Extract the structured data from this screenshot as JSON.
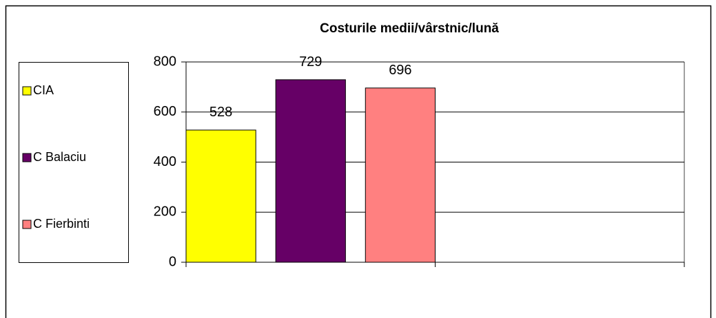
{
  "chart_data": {
    "type": "bar",
    "title": "Costurile medii/vârstnic/lună",
    "categories": [
      null,
      null
    ],
    "series": [
      {
        "name": "CIA",
        "color": "#ffff00",
        "values": [
          528,
          null
        ]
      },
      {
        "name": "C Balaciu",
        "color": "#660066",
        "values": [
          729,
          null
        ]
      },
      {
        "name": "C Fierbinti",
        "color": "#ff8080",
        "values": [
          696,
          null
        ]
      }
    ],
    "ylim": [
      0,
      800
    ],
    "yticks": [
      0,
      200,
      400,
      600,
      800
    ],
    "grid": true,
    "legend": "left",
    "data_labels": true
  }
}
